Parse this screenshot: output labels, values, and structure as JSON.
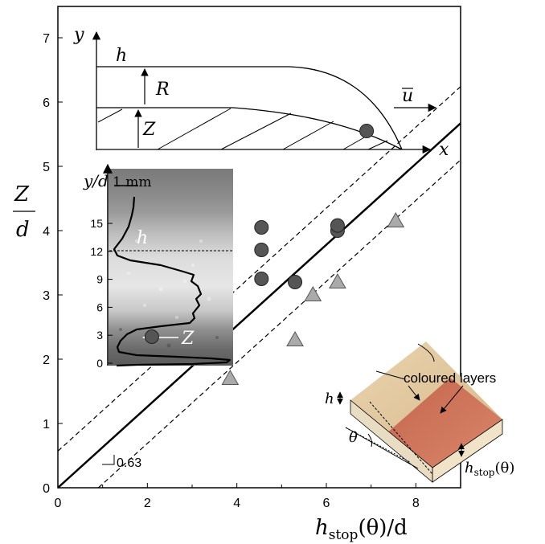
{
  "chart_data": {
    "type": "scatter",
    "x_label_main": "h",
    "x_label_sub": "stop",
    "x_label_rest": "(θ)/d",
    "y_label_num": "Z",
    "y_label_den": "d",
    "xlim": [
      0,
      9
    ],
    "ylim": [
      0,
      7.5
    ],
    "x_ticks": [
      "0",
      "2",
      "4",
      "6",
      "8"
    ],
    "x_tick_values": [
      0,
      2,
      4,
      6,
      8
    ],
    "y_ticks": [
      "0",
      "1",
      "2",
      "3",
      "4",
      "5",
      "6",
      "7"
    ],
    "y_tick_values": [
      0,
      1,
      2,
      3,
      4,
      5,
      6,
      7
    ],
    "grid": false,
    "fit_line": {
      "slope": 0.63,
      "intercept": 0,
      "offset": 0.57,
      "style": "solid",
      "band_style": "dashed"
    },
    "slope_label": "0.63",
    "series": [
      {
        "marker": "circle",
        "color": "#555555",
        "points": [
          [
            2.1,
            2.35
          ],
          [
            4.55,
            3.25
          ],
          [
            4.55,
            3.7
          ],
          [
            4.55,
            4.05
          ],
          [
            5.3,
            3.2
          ],
          [
            6.25,
            4.0
          ],
          [
            6.25,
            4.08
          ],
          [
            6.9,
            5.55
          ]
        ]
      },
      {
        "marker": "triangle",
        "color": "#aaaaaa",
        "points": [
          [
            3.85,
            1.7
          ],
          [
            5.3,
            2.3
          ],
          [
            5.7,
            3.0
          ],
          [
            6.25,
            3.2
          ],
          [
            7.55,
            4.15
          ]
        ]
      }
    ],
    "inset": {
      "y_label": "y/d",
      "y_ticks": [
        "0",
        "3",
        "6",
        "9",
        "12",
        "15"
      ],
      "y_tick_values": [
        0,
        3,
        6,
        9,
        12,
        15
      ],
      "scale_bar": "1 mm",
      "label_h": "h",
      "label_z": "Z"
    },
    "schematic": {
      "labels": {
        "y": "y",
        "x": "x",
        "h": "h",
        "R": "R",
        "Z": "Z",
        "u": "u"
      }
    },
    "photo_inset": {
      "label_layers": "coloured layers",
      "label_h": "h",
      "label_theta": "θ",
      "label_hstop_main": "h",
      "label_hstop_sub": "stop",
      "label_hstop_rest": "(θ)"
    }
  }
}
